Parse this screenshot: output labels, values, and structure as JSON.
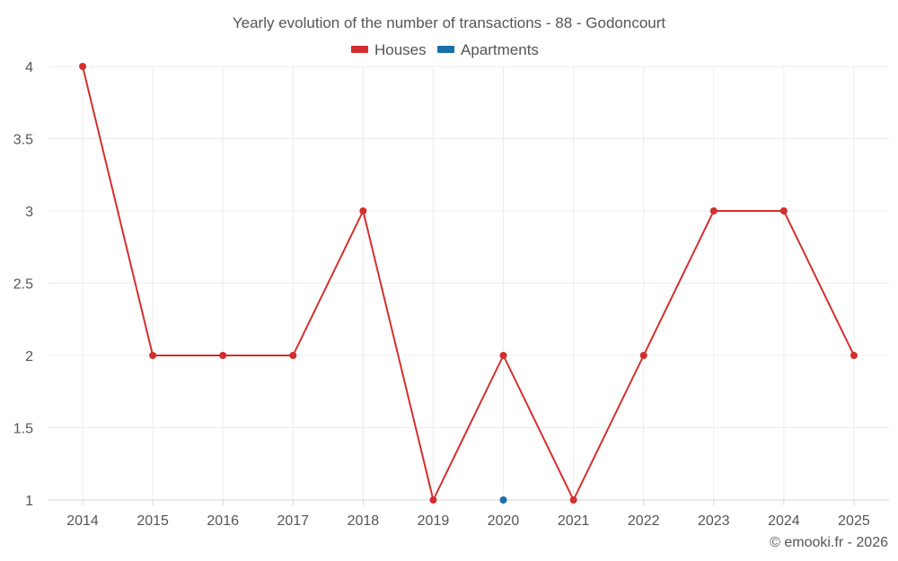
{
  "chart_data": {
    "type": "line",
    "title": "Yearly evolution of the number of transactions - 88 - Godoncourt",
    "xlabel": "",
    "ylabel": "",
    "categories": [
      "2014",
      "2015",
      "2016",
      "2017",
      "2018",
      "2019",
      "2020",
      "2021",
      "2022",
      "2023",
      "2024",
      "2025"
    ],
    "ylim": [
      1,
      4
    ],
    "yticks": [
      "1",
      "1.5",
      "2",
      "2.5",
      "3",
      "3.5",
      "4"
    ],
    "grid": true,
    "legend_position": "top-center",
    "series": [
      {
        "name": "Houses",
        "color": "#d32f2f",
        "values": [
          4,
          2,
          2,
          2,
          3,
          1,
          2,
          1,
          2,
          3,
          3,
          2
        ]
      },
      {
        "name": "Apartments",
        "color": "#1a6fa8",
        "values": [
          null,
          null,
          null,
          null,
          null,
          null,
          1,
          null,
          null,
          null,
          null,
          null
        ]
      }
    ]
  },
  "credit": "© emooki.fr - 2026"
}
